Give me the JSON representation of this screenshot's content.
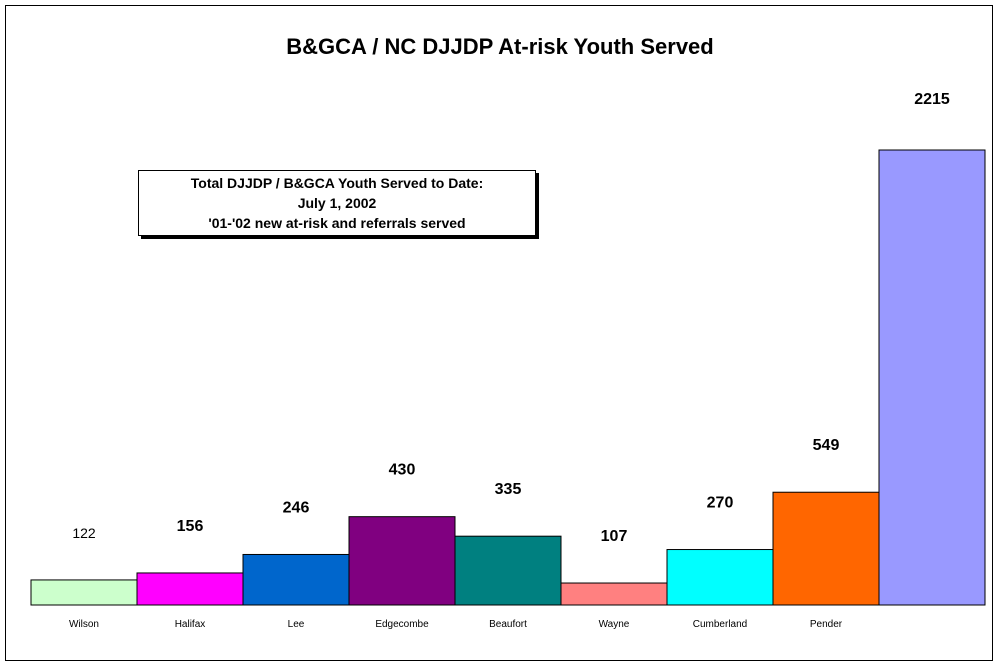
{
  "chart_data": {
    "type": "bar",
    "title": "B&GCA / NC DJJDP At-risk Youth Served",
    "categories": [
      "Wilson",
      "Halifax",
      "Lee",
      "Edgecombe",
      "Beaufort",
      "Wayne",
      "Cumberland",
      "Pender",
      ""
    ],
    "values": [
      122,
      156,
      246,
      430,
      335,
      107,
      270,
      549,
      2215
    ],
    "data_labels": [
      "122",
      "156",
      "246",
      "430",
      "335",
      "107",
      "270",
      "549",
      "2215"
    ],
    "bar_colors": [
      "#ccffcc",
      "#ff00ff",
      "#0066cc",
      "#800080",
      "#008080",
      "#ff8080",
      "#00ffff",
      "#ff6600",
      "#9999ff"
    ],
    "xlabel": "",
    "ylabel": "",
    "grid": false,
    "annotation": {
      "lines": [
        "Total DJJDP / B&GCA Youth Served to Date:",
        "July 1, 2002",
        "'01-'02 new at-risk and referrals served"
      ]
    }
  }
}
